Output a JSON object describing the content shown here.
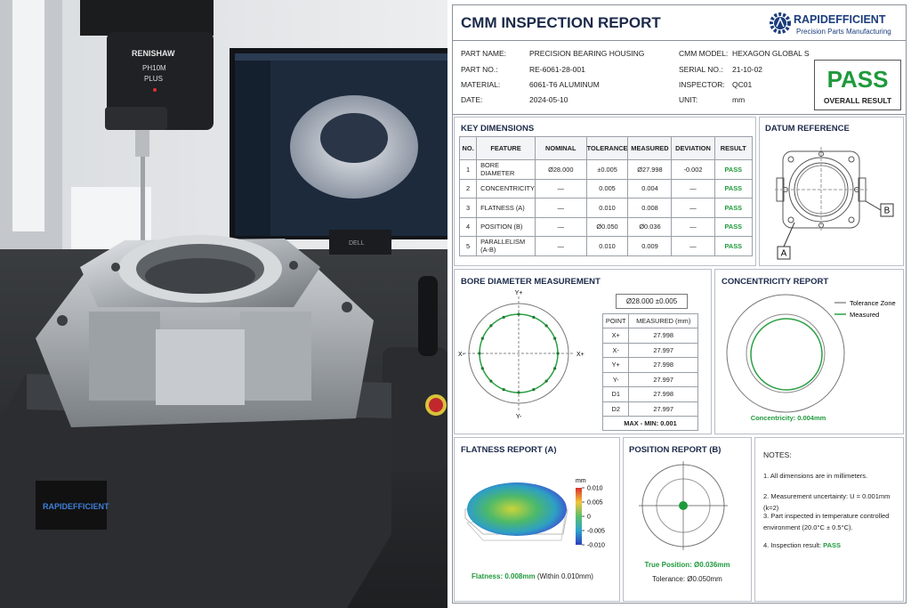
{
  "photo": {
    "probe_brand": "RENISHAW",
    "probe_model": "PH10M",
    "probe_variant": "PLUS",
    "fixture_brand": "RAPIDEFFICIENT",
    "monitor_brand": "DELL"
  },
  "header": {
    "title": "CMM INSPECTION REPORT",
    "logo": "RAPIDEFFICIENT",
    "tagline": "Precision Parts Manufacturing"
  },
  "info": {
    "left": [
      {
        "label": "PART NAME:",
        "value": "PRECISION BEARING HOUSING"
      },
      {
        "label": "PART NO.:",
        "value": "RE-6061-28-001"
      },
      {
        "label": "MATERIAL:",
        "value": "6061-T6 ALUMINUM"
      },
      {
        "label": "DATE:",
        "value": "2024-05-10"
      }
    ],
    "right": [
      {
        "label": "CMM MODEL:",
        "value": "HEXAGON GLOBAL S"
      },
      {
        "label": "SERIAL NO.:",
        "value": "21-10-02"
      },
      {
        "label": "INSPECTOR:",
        "value": "QC01"
      },
      {
        "label": "UNIT:",
        "value": "mm"
      }
    ],
    "result": {
      "status": "PASS",
      "label": "OVERALL RESULT"
    }
  },
  "key_dimensions": {
    "title": "KEY DIMENSIONS",
    "columns": [
      "NO.",
      "FEATURE",
      "NOMINAL",
      "TOLERANCE",
      "MEASURED",
      "DEVIATION",
      "RESULT"
    ],
    "rows": [
      [
        "1",
        "BORE DIAMETER",
        "Ø28.000",
        "±0.005",
        "Ø27.998",
        "-0.002",
        "PASS"
      ],
      [
        "2",
        "CONCENTRICITY",
        "—",
        "0.005",
        "0.004",
        "—",
        "PASS"
      ],
      [
        "3",
        "FLATNESS (A)",
        "—",
        "0.010",
        "0.008",
        "—",
        "PASS"
      ],
      [
        "4",
        "POSITION (B)",
        "—",
        "Ø0.050",
        "Ø0.036",
        "—",
        "PASS"
      ],
      [
        "5",
        "PARALLELISM (A-B)",
        "—",
        "0.010",
        "0.009",
        "—",
        "PASS"
      ]
    ]
  },
  "datum": {
    "title": "DATUM REFERENCE",
    "label_a": "A",
    "label_b": "B"
  },
  "bore": {
    "title": "BORE DIAMETER MEASUREMENT",
    "nominal": "Ø28.000 ±0.005",
    "axis_top": "Y+",
    "axis_left": "X-",
    "axis_right": "X+",
    "axis_bottom": "Y-",
    "columns": [
      "POINT",
      "MEASURED (mm)"
    ],
    "rows": [
      [
        "X+",
        "27.998"
      ],
      [
        "X-",
        "27.997"
      ],
      [
        "Y+",
        "27.998"
      ],
      [
        "Y-",
        "27.997"
      ],
      [
        "D1",
        "27.998"
      ],
      [
        "D2",
        "27.997"
      ]
    ],
    "range": "MAX - MIN: 0.001"
  },
  "concentricity": {
    "title": "CONCENTRICITY REPORT",
    "legend_tolerance": "Tolerance Zone",
    "legend_measured": "Measured",
    "result": "Concentricity: 0.004mm"
  },
  "flatness": {
    "title": "FLATNESS REPORT (A)",
    "colorbar_unit": "mm",
    "colorbar_ticks": [
      "0.010",
      "0.005",
      "0",
      "-0.005",
      "-0.010"
    ],
    "result": "Flatness: 0.008mm",
    "note": "(Within 0.010mm)"
  },
  "position": {
    "title": "POSITION REPORT (B)",
    "result": "True Position: Ø0.036mm",
    "tolerance": "Tolerance: Ø0.050mm"
  },
  "notes": {
    "title": "NOTES:",
    "items": [
      "1. All dimensions are in millimeters.",
      "2. Measurement uncertainty: U = 0.001mm (k=2)",
      "3. Part inspected in temperature controlled environment (20.0°C ± 0.5°C).",
      "4. Inspection result:"
    ],
    "result": "PASS"
  }
}
